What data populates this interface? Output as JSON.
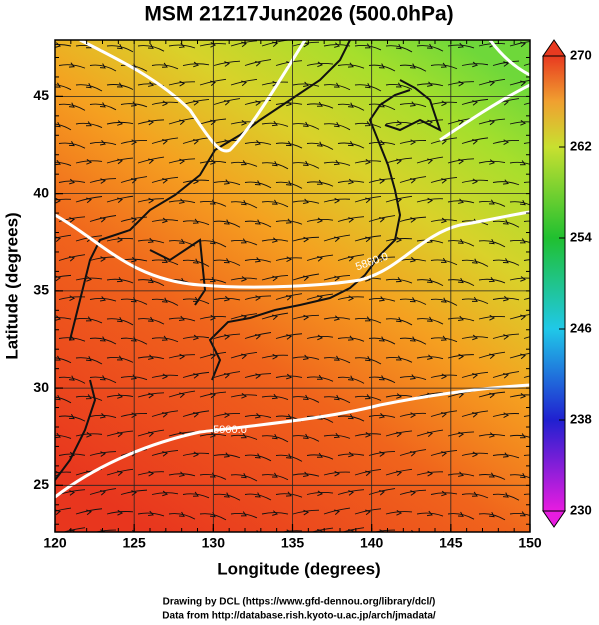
{
  "map": {
    "title": "MSM 21Z17Jun2026 (500.0hPa)",
    "xlabel": "Longitude (degrees)",
    "ylabel": "Latitude  (degrees)",
    "xlim": [
      120,
      150
    ],
    "ylim": [
      22.6,
      47.9
    ],
    "xticks": [
      120,
      125,
      130,
      135,
      140,
      145,
      150
    ],
    "yticks": [
      25,
      30,
      35,
      40,
      45
    ],
    "contour_labels": [
      "5880.0",
      "5900.0"
    ]
  },
  "colorbar": {
    "lim": [
      230,
      270
    ],
    "ticks": [
      230,
      238,
      246,
      254,
      262,
      270
    ]
  },
  "footer": {
    "lines": [
      "Drawing by DCL (https://www.gfd-dennou.org/library/dcl/)",
      "Data from http://database.rish.kyoto-u.ac.jp/arch/jmadata/"
    ]
  }
}
